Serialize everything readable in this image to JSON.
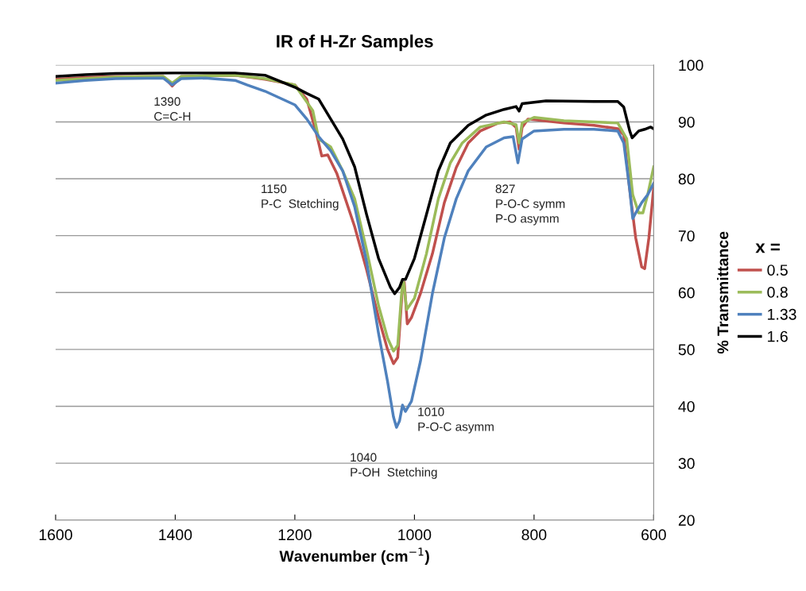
{
  "chart_data": {
    "type": "line",
    "title": "IR of H-Zr Samples",
    "xlabel": "Wavenumber (cm$^{−1}$)",
    "ylabel": "% Transmittance",
    "xlim": [
      1600,
      600
    ],
    "xticks": [
      1600,
      1400,
      1200,
      1000,
      800,
      600
    ],
    "ylim": [
      20,
      100
    ],
    "yticks": [
      20,
      30,
      40,
      50,
      60,
      70,
      80,
      90,
      100
    ],
    "grid": "y",
    "legend": "right",
    "legend_title": "x =",
    "marker": "none",
    "line_style": "solid",
    "annotations": [
      "1390\nC=C-H",
      "1150\nP-C  Stetching",
      "827\nP-O-C symm\nP-O asymm",
      "1010\nP-O-C asymm",
      "1040\nP-OH  Stetching"
    ],
    "series": [
      {
        "name": "0.5",
        "color": "#c0504d",
        "x": [
          1600,
          1550,
          1500,
          1450,
          1420,
          1405,
          1390,
          1300,
          1250,
          1200,
          1180,
          1165,
          1155,
          1145,
          1130,
          1100,
          1080,
          1060,
          1045,
          1035,
          1028,
          1020,
          1017,
          1012,
          1005,
          990,
          970,
          950,
          930,
          910,
          890,
          860,
          840,
          830,
          825,
          820,
          810,
          750,
          700,
          660,
          650,
          640,
          630,
          620,
          615,
          608,
          600
        ],
        "values": [
          97.5,
          97.8,
          98,
          98,
          98,
          96.3,
          98,
          98.2,
          97.5,
          96.5,
          94,
          88.4,
          84,
          84.2,
          81,
          71.6,
          64,
          55.6,
          50,
          47.5,
          48.6,
          61,
          61.8,
          54.5,
          55.6,
          59.8,
          66.8,
          75.8,
          82,
          86.3,
          88.4,
          89.8,
          90,
          89,
          85.2,
          89,
          90.5,
          89.8,
          89.4,
          88.8,
          87.7,
          78,
          69.6,
          64.5,
          64.2,
          69.6,
          78.4
        ]
      },
      {
        "name": "0.8",
        "color": "#9bbb59",
        "x": [
          1600,
          1550,
          1500,
          1450,
          1420,
          1405,
          1390,
          1300,
          1250,
          1200,
          1170,
          1160,
          1140,
          1120,
          1100,
          1080,
          1060,
          1045,
          1035,
          1028,
          1021,
          1018,
          1013,
          1000,
          980,
          960,
          940,
          920,
          890,
          850,
          830,
          825,
          820,
          800,
          750,
          700,
          660,
          645,
          635,
          625,
          618,
          610,
          600
        ],
        "values": [
          97.3,
          97.6,
          97.9,
          98,
          98,
          96.8,
          98,
          98.2,
          97.6,
          96.5,
          92,
          87,
          85.6,
          81.4,
          76.5,
          67.5,
          57.7,
          52,
          49.7,
          50.7,
          60.5,
          61.8,
          57,
          59,
          66.8,
          76.5,
          82.8,
          86.3,
          89.1,
          90,
          89.5,
          86.3,
          89.8,
          90.8,
          90.2,
          90,
          89.8,
          87,
          77.2,
          74,
          74,
          77.2,
          82.1
        ]
      },
      {
        "name": "1.33",
        "color": "#4f81bd",
        "x": [
          1600,
          1550,
          1500,
          1420,
          1405,
          1390,
          1350,
          1300,
          1280,
          1250,
          1200,
          1180,
          1160,
          1140,
          1120,
          1100,
          1080,
          1060,
          1045,
          1035,
          1030,
          1025,
          1020,
          1015,
          1005,
          990,
          970,
          950,
          930,
          910,
          880,
          850,
          835,
          827,
          820,
          800,
          750,
          700,
          660,
          650,
          640,
          635,
          630,
          620,
          610,
          600
        ],
        "values": [
          96.8,
          97.3,
          97.6,
          97.7,
          96.5,
          97.6,
          97.7,
          97.3,
          96.5,
          95.4,
          93,
          90.5,
          87.4,
          84.9,
          81.4,
          75.1,
          65.4,
          52.8,
          44.4,
          38.1,
          36.3,
          37.4,
          40.2,
          39.1,
          40.9,
          47.9,
          59.8,
          69.6,
          76.5,
          81.4,
          85.6,
          87.2,
          87.4,
          82.8,
          87,
          88.4,
          88.7,
          88.7,
          88.4,
          86.3,
          78,
          73,
          74,
          75.8,
          77.2,
          79.2
        ]
      },
      {
        "name": "1.6",
        "color": "#000000",
        "x": [
          1600,
          1550,
          1500,
          1400,
          1300,
          1250,
          1200,
          1180,
          1160,
          1140,
          1120,
          1100,
          1080,
          1060,
          1040,
          1033,
          1025,
          1020,
          1015,
          1000,
          980,
          960,
          940,
          910,
          880,
          850,
          830,
          825,
          820,
          780,
          700,
          660,
          650,
          640,
          636,
          625,
          615,
          605,
          600
        ],
        "values": [
          98,
          98.3,
          98.5,
          98.6,
          98.6,
          98.2,
          96.1,
          95,
          94,
          90.5,
          87,
          82.1,
          73.7,
          66,
          60.9,
          59.8,
          60.9,
          62.3,
          62.3,
          66,
          73.7,
          81.4,
          86.3,
          89.4,
          91.2,
          92.2,
          92.7,
          91.9,
          93.2,
          93.7,
          93.6,
          93.6,
          92.6,
          88.4,
          87.2,
          88.4,
          88.7,
          89.1,
          88.8
        ]
      }
    ]
  }
}
